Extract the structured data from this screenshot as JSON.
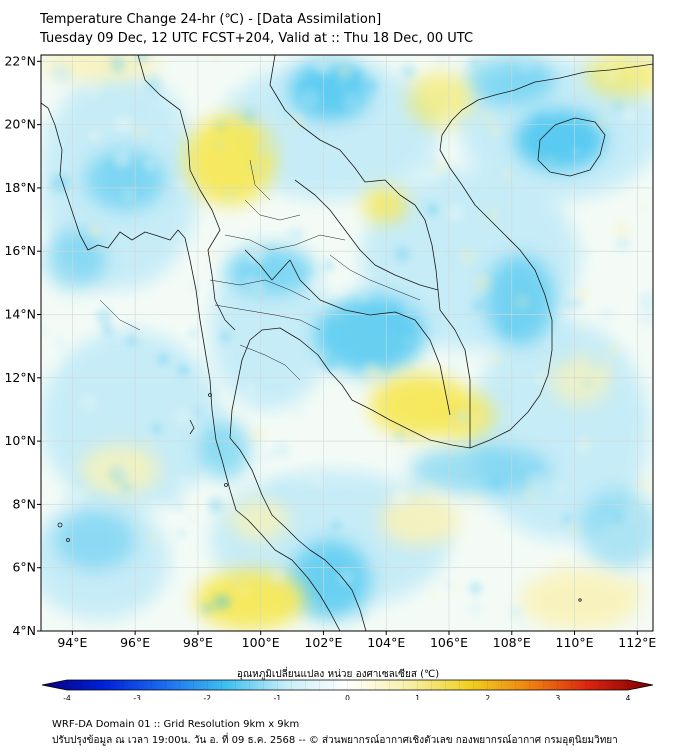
{
  "header": {
    "title_line1": "Temperature Change 24-hr (℃) - [Data Assimilation]",
    "title_line2": "Tuesday 09 Dec, 12 UTC FCST+204, Valid at :: Thu 18 Dec, 00 UTC"
  },
  "map": {
    "lon_ticks": [
      94,
      96,
      98,
      100,
      102,
      104,
      106,
      108,
      110,
      112
    ],
    "lat_ticks": [
      4,
      6,
      8,
      10,
      12,
      14,
      16,
      18,
      20,
      22
    ],
    "lon_labels": [
      "94°E",
      "96°E",
      "98°E",
      "100°E",
      "102°E",
      "104°E",
      "106°E",
      "108°E",
      "110°E",
      "112°E"
    ],
    "lat_labels": [
      "4°N",
      "6°N",
      "8°N",
      "10°N",
      "12°N",
      "14°N",
      "16°N",
      "18°N",
      "20°N",
      "22°N"
    ],
    "lon_range": [
      93,
      112.5
    ],
    "lat_range": [
      4,
      22.2
    ],
    "field_colors": {
      "cool": "#45c4f0",
      "light_cool": "#bfeaf8",
      "neutral": "#f4fbf6",
      "warm": "#f5e85a",
      "light_warm": "#f8f2b8"
    }
  },
  "colorbar": {
    "label": "อุณหภูมิเปลี่ยนแปลง หน่วย องศาเซลเซียส (℃)",
    "ticks": [
      -4,
      -3,
      -2,
      -1,
      0,
      1,
      2,
      3,
      4
    ],
    "tick_labels": [
      "-4",
      "-3",
      "-2",
      "-1",
      "0",
      "1",
      "2",
      "3",
      "4"
    ],
    "range": [
      -4,
      4
    ],
    "colors": [
      "#0a0080",
      "#0020d8",
      "#1c6cf0",
      "#3cc0f0",
      "#c8eef8",
      "#ffffff",
      "#f8f0a8",
      "#f0d020",
      "#f08010",
      "#d82010",
      "#780000"
    ]
  },
  "footer": {
    "line1": "WRF-DA Domain 01 :: Grid Resolution 9km x 9km",
    "line2": "ปรับปรุงข้อมูล ณ เวลา 19:00น. วัน อ. ที่ 09 ธ.ค. 2568 -- © ส่วนพยากรณ์อากาศเชิงตัวเลข กองพยากรณ์อากาศ กรมอุตุนิยมวิทยา"
  }
}
